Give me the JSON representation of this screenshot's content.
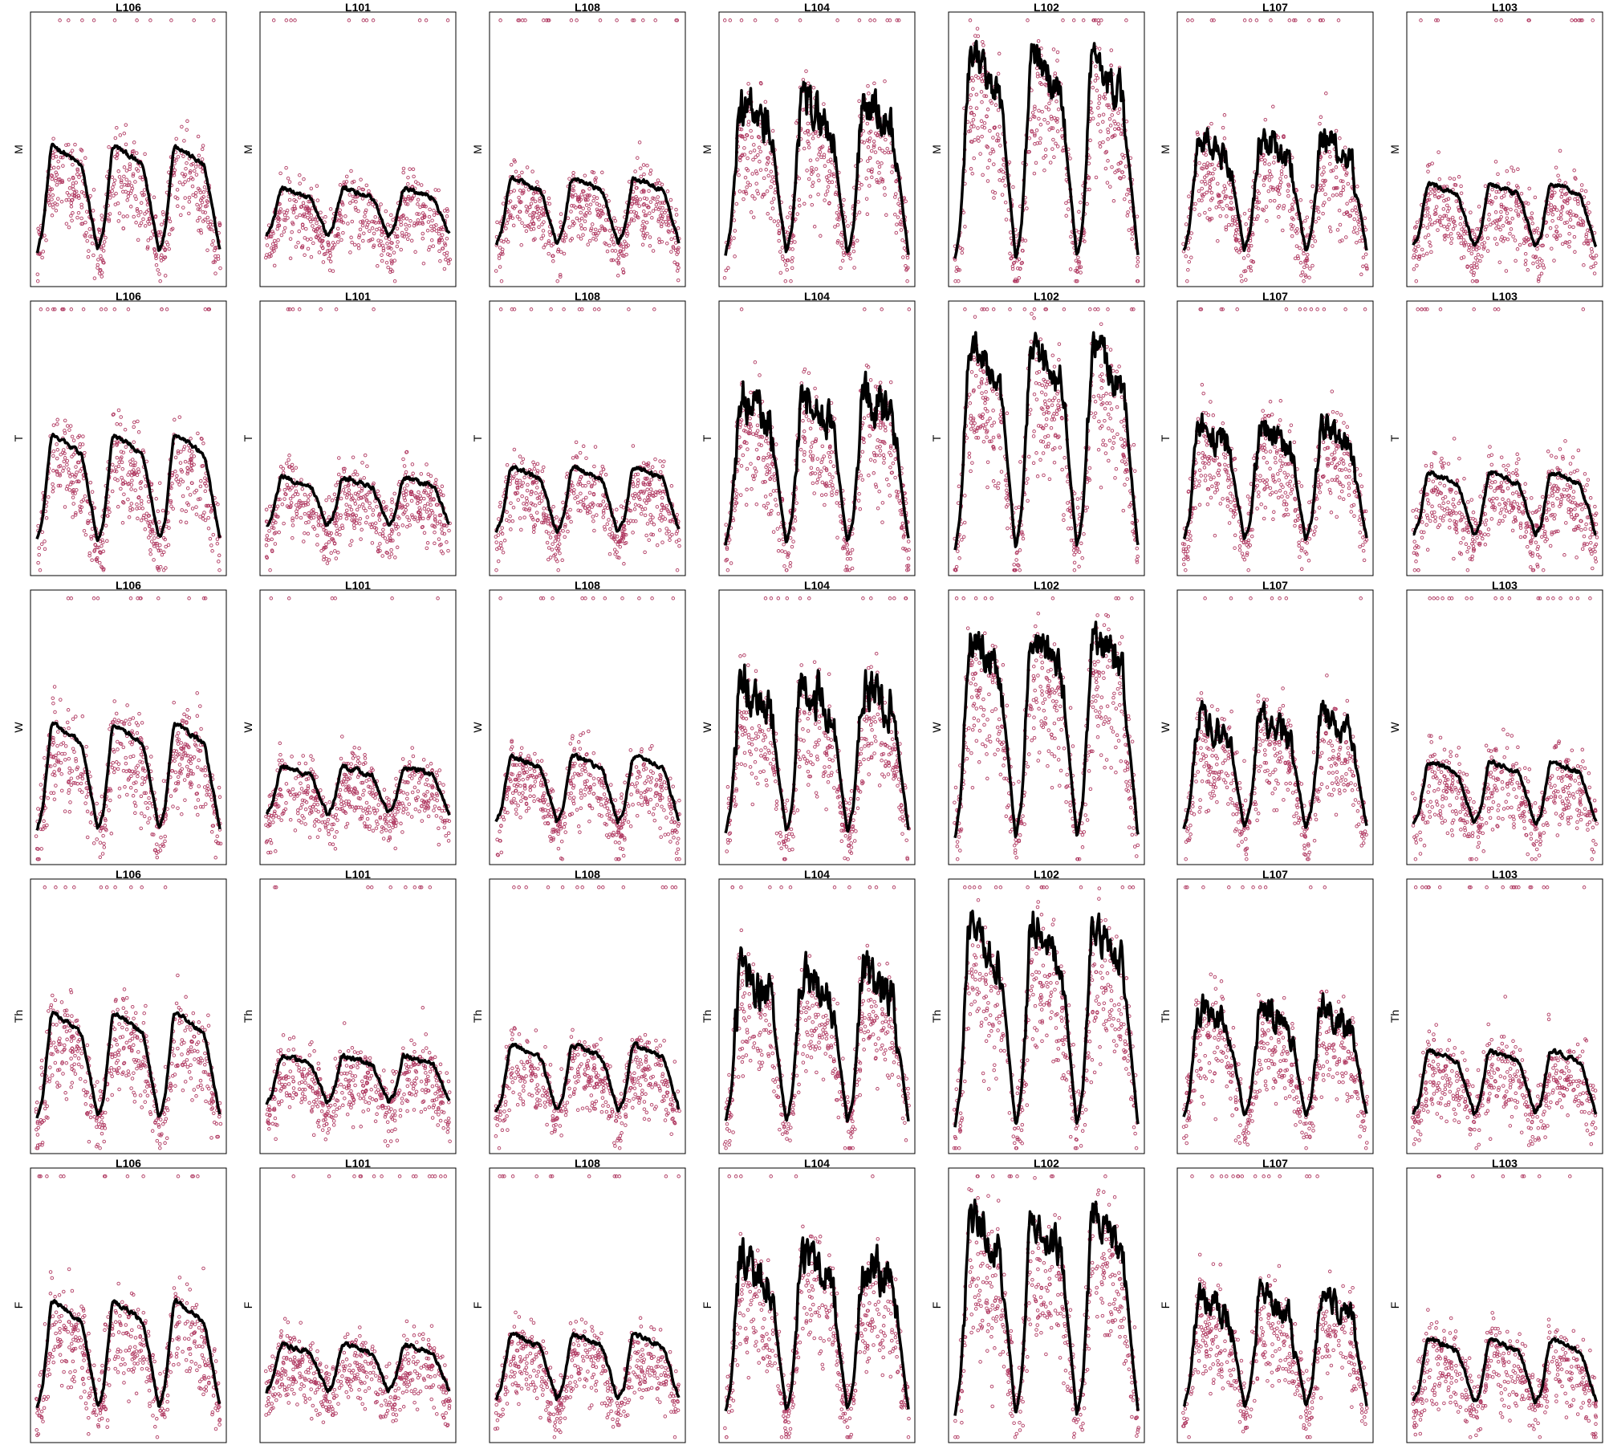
{
  "figure": {
    "row_labels": [
      "M",
      "T",
      "W",
      "Th",
      "F"
    ],
    "column_titles": [
      "L106",
      "L101",
      "L108",
      "L104",
      "L102",
      "L107",
      "L103"
    ],
    "colors": {
      "points": "#B03A62",
      "line": "#000000",
      "frame": "#000000",
      "background": "#ffffff"
    }
  },
  "chart_data": {
    "type": "scatter",
    "description_of_marks": "Each panel: small open-circle points plus a thick smoothed black line showing three daily cycles",
    "x_axis": {
      "ticks_shown": false,
      "label": ""
    },
    "y_axis": {
      "ticks_shown": false
    },
    "rows": [
      "M",
      "T",
      "W",
      "Th",
      "F"
    ],
    "columns": [
      "L106",
      "L101",
      "L108",
      "L104",
      "L102",
      "L107",
      "L103"
    ],
    "cycles_per_panel": 3,
    "panel_profiles": {
      "L106": {
        "base": 0.12,
        "peak": 0.52,
        "spikiness": 0.15,
        "scatter": 0.1
      },
      "L101": {
        "base": 0.18,
        "peak": 0.36,
        "spikiness": 0.12,
        "scatter": 0.08
      },
      "L108": {
        "base": 0.15,
        "peak": 0.4,
        "spikiness": 0.12,
        "scatter": 0.08
      },
      "L104": {
        "base": 0.1,
        "peak": 0.68,
        "spikiness": 0.9,
        "scatter": 0.1
      },
      "L102": {
        "base": 0.08,
        "peak": 0.85,
        "spikiness": 0.55,
        "scatter": 0.12
      },
      "L107": {
        "base": 0.12,
        "peak": 0.55,
        "spikiness": 0.8,
        "scatter": 0.1
      },
      "L103": {
        "base": 0.14,
        "peak": 0.38,
        "spikiness": 0.15,
        "scatter": 0.1
      }
    }
  }
}
